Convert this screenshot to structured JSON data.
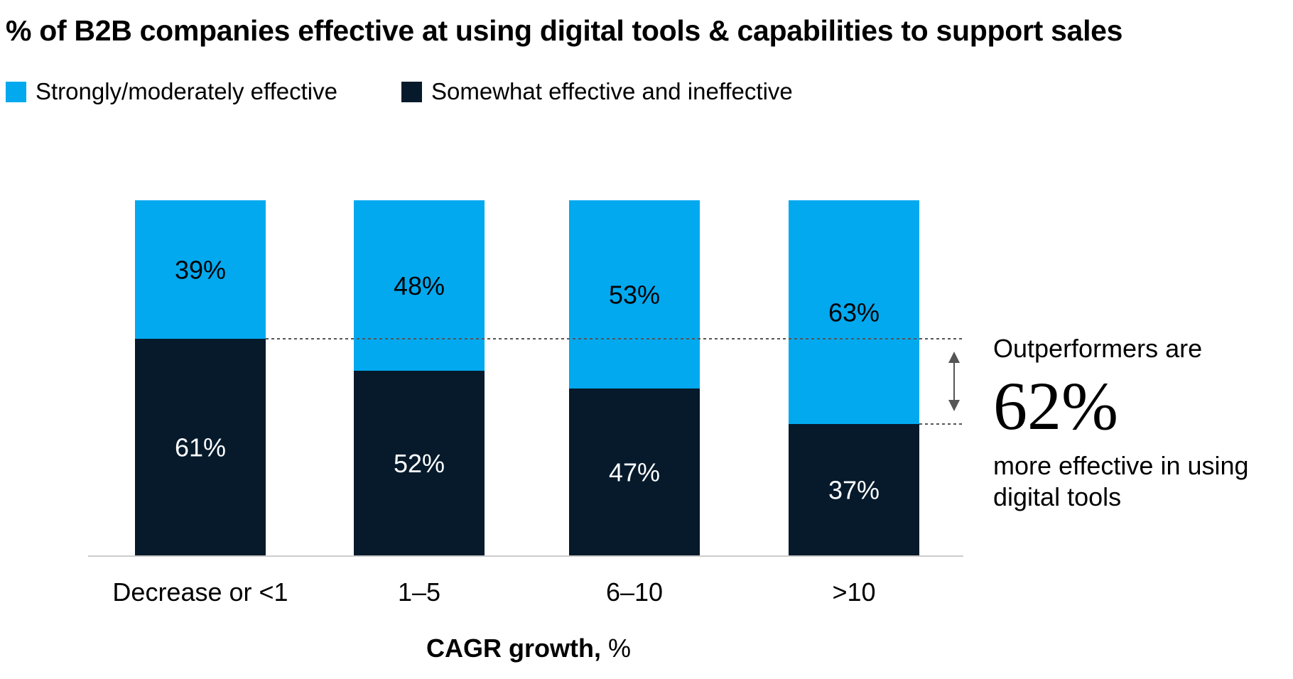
{
  "title": "% of B2B companies effective at using digital tools & capabilities to support sales",
  "legend": [
    {
      "label": "Strongly/moderately effective",
      "color": "#02a9ef"
    },
    {
      "label": "Somewhat effective and ineffective",
      "color": "#061a2c"
    }
  ],
  "colors": {
    "effective": "#02a9ef",
    "ineffective": "#061a2c",
    "text_on_light": "#000000",
    "text_on_dark": "#ffffff",
    "axis": "#cccccc",
    "guide": "#555555"
  },
  "callout": {
    "line1": "Outperformers are",
    "big": "62%",
    "line3": "more effective in using digital tools"
  },
  "axis": {
    "xlabel_bold": "CAGR growth,",
    "xlabel_unit": " %"
  },
  "chart_data": {
    "type": "bar",
    "stacked": true,
    "categories": [
      "Decrease or <1",
      "1–5",
      "6–10",
      ">10"
    ],
    "series": [
      {
        "name": "Strongly/moderately effective",
        "values": [
          39,
          48,
          53,
          63
        ],
        "labels": [
          "39%",
          "48%",
          "53%",
          "63%"
        ]
      },
      {
        "name": "Somewhat effective and ineffective",
        "values": [
          61,
          52,
          47,
          37
        ],
        "labels": [
          "61%",
          "52%",
          "47%",
          "37%"
        ]
      }
    ],
    "title": "% of B2B companies effective at using digital tools & capabilities to support sales",
    "xlabel": "CAGR growth, %",
    "ylabel": "",
    "ylim": [
      0,
      100
    ],
    "grid": false,
    "legend": "top-left",
    "annotation": "Outperformers are 62% more effective in using digital tools"
  }
}
